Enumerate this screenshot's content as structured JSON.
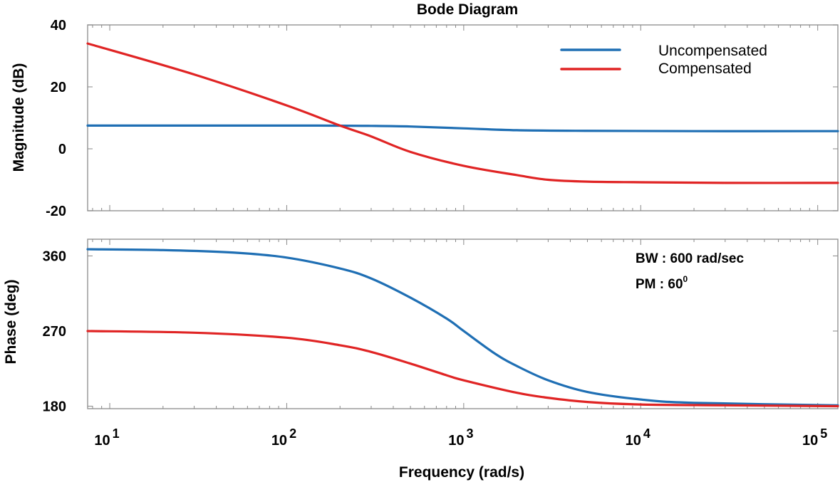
{
  "chart_data": {
    "type": "line",
    "title": "Bode Diagram",
    "xlabel": "Frequency  (rad/s)",
    "x_scale": "log",
    "xlim": [
      7.5,
      130000
    ],
    "x_ticks": [
      {
        "value": 10,
        "base": "10",
        "exp": "1"
      },
      {
        "value": 100,
        "base": "10",
        "exp": "2"
      },
      {
        "value": 1000,
        "base": "10",
        "exp": "3"
      },
      {
        "value": 10000,
        "base": "10",
        "exp": "4"
      },
      {
        "value": 100000,
        "base": "10",
        "exp": "5"
      }
    ],
    "legend": {
      "position": "top-right",
      "entries": [
        {
          "name": "Uncompensated",
          "color": "#1f6fb4"
        },
        {
          "name": "Compensated",
          "color": "#e02424"
        }
      ]
    },
    "annotations": {
      "bw": "BW : 600 rad/sec",
      "pm_base": "PM : 60",
      "pm_sup": "0"
    },
    "subplots": [
      {
        "ylabel": "Magnitude (dB)",
        "ylim": [
          -20,
          40
        ],
        "yticks": [
          "40",
          "20",
          "0",
          "-20"
        ],
        "ytick_values": [
          40,
          20,
          0,
          -20
        ],
        "series": [
          {
            "name": "Uncompensated",
            "color": "#1f6fb4",
            "x": [
              7.5,
              50,
              150,
              300,
              500,
              1000,
              2000,
              5000,
              20000,
              130000
            ],
            "y": [
              7.5,
              7.5,
              7.5,
              7.4,
              7.2,
              6.6,
              6.0,
              5.8,
              5.7,
              5.7
            ]
          },
          {
            "name": "Compensated",
            "color": "#e02424",
            "x": [
              7.5,
              30,
              100,
              200,
              300,
              500,
              1000,
              2000,
              3000,
              5000,
              10000,
              30000,
              130000
            ],
            "y": [
              34,
              24,
              14,
              7.5,
              4,
              -1,
              -5.5,
              -8.5,
              -10,
              -10.6,
              -10.8,
              -11,
              -11
            ]
          }
        ]
      },
      {
        "ylabel": "Phase (deg)",
        "ylim": [
          177,
          380
        ],
        "yticks": [
          "360",
          "270",
          "180"
        ],
        "ytick_values": [
          360,
          270,
          180
        ],
        "series": [
          {
            "name": "Uncompensated",
            "color": "#1f6fb4",
            "x": [
              7.5,
              20,
              50,
              100,
              200,
              300,
              500,
              800,
              1000,
              1500,
              2000,
              3000,
              5000,
              10000,
              20000,
              130000
            ],
            "y": [
              368,
              367,
              364,
              358,
              345,
              333,
              310,
              285,
              270,
              243,
              228,
              211,
              197,
              188,
              184,
              181
            ]
          },
          {
            "name": "Compensated",
            "color": "#e02424",
            "x": [
              7.5,
              30,
              100,
              200,
              300,
              500,
              800,
              1000,
              2000,
              3000,
              5000,
              10000,
              30000,
              130000
            ],
            "y": [
              270,
              268,
              262,
              253,
              245,
              231,
              217,
              211,
              196,
              190,
              185,
              182,
              181,
              180
            ]
          }
        ]
      }
    ]
  }
}
